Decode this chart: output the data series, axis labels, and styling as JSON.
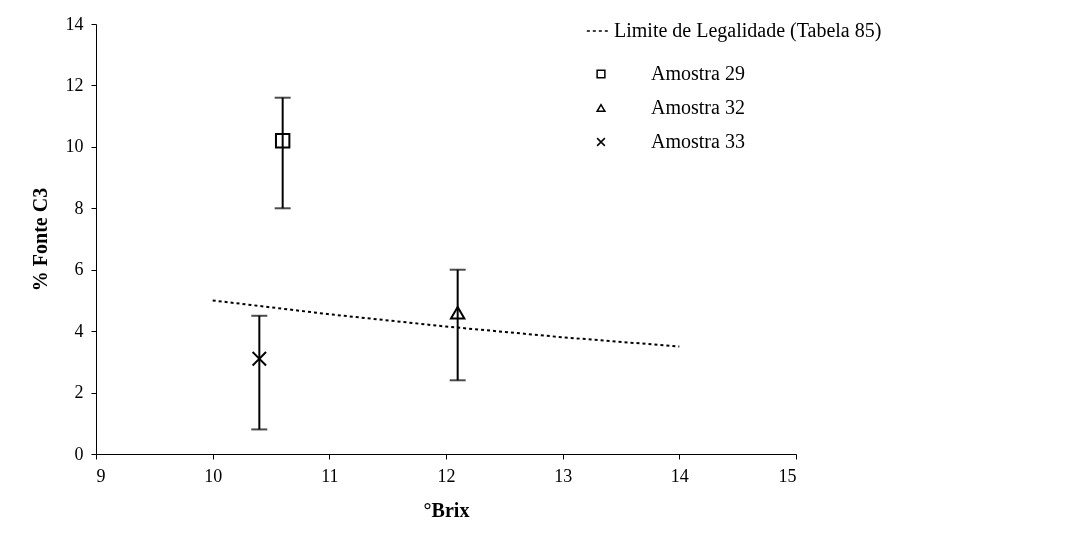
{
  "chart_data": {
    "type": "scatter",
    "xlabel": "°Brix",
    "ylabel": "% Fonte C3",
    "xlim": [
      9,
      15
    ],
    "xticks": [
      9,
      10,
      11,
      12,
      13,
      14,
      15
    ],
    "ylim": [
      0,
      14
    ],
    "yticks": [
      0,
      2,
      4,
      6,
      8,
      10,
      12,
      14
    ],
    "grid": false,
    "legend": "top right",
    "series": [
      {
        "name": "Limite de Legalidade (Tabela 85)",
        "type": "line",
        "line_style": "dashed",
        "marker": "none",
        "color": "#000000",
        "x": [
          10,
          11,
          12,
          13,
          14
        ],
        "values": [
          5.0,
          4.55,
          4.15,
          3.8,
          3.5
        ]
      },
      {
        "name": "Amostra 29",
        "type": "scatter",
        "marker": "square",
        "color": "#000000",
        "x": [
          10.6
        ],
        "values": [
          10.2
        ],
        "errors": [
          [
            8.0,
            11.6
          ]
        ]
      },
      {
        "name": "Amostra 32",
        "type": "scatter",
        "marker": "triangle",
        "color": "#000000",
        "x": [
          12.1
        ],
        "values": [
          4.6
        ],
        "errors": [
          [
            2.4,
            6.0
          ]
        ]
      },
      {
        "name": "Amostra 33",
        "type": "scatter",
        "marker": "cross",
        "color": "#000000",
        "x": [
          10.4
        ],
        "values": [
          3.1
        ],
        "errors": [
          [
            0.8,
            4.5
          ]
        ]
      }
    ]
  }
}
